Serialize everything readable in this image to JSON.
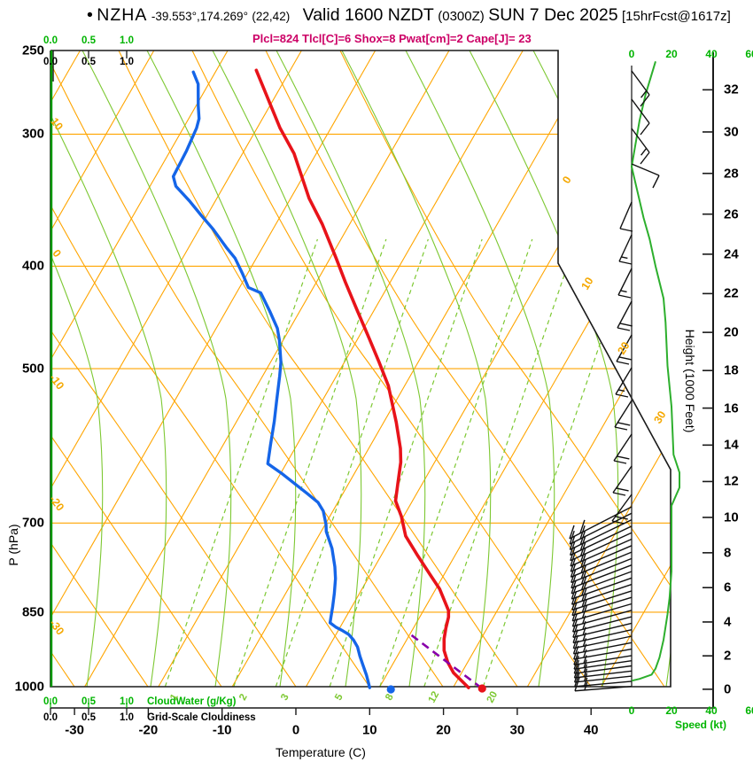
{
  "header": {
    "bullet": "•",
    "station": "NZHA",
    "coords": "-39.553°,174.269°",
    "grid_ref": "(22,42)",
    "valid": "Valid 1600 NZDT",
    "valid_z": "(0300Z)",
    "valid_date": "SUN 7 Dec 2025",
    "fcst_tag": "[15hrFcst@1617z]",
    "params_line": "Plcl=824 Tlcl[C]=6 Shox=8 Pwat[cm]=2 Cape[J]= 23"
  },
  "axes": {
    "pressure": {
      "label": "P (hPa)",
      "ticks": [
        250,
        300,
        400,
        500,
        700,
        850,
        1000
      ]
    },
    "temperature": {
      "label": "Temperature (C)",
      "ticks": [
        -30,
        -20,
        -10,
        0,
        10,
        20,
        30,
        40
      ]
    },
    "height": {
      "label": "Height (1000 Feet)",
      "ticks": [
        0,
        2,
        4,
        6,
        8,
        10,
        12,
        14,
        16,
        18,
        20,
        22,
        24,
        26,
        28,
        30,
        32
      ]
    },
    "speed": {
      "label": "Speed (kt)",
      "ticks": [
        0,
        20,
        40,
        60
      ]
    },
    "cloudwater": {
      "label": "CloudWater (g/Kg)",
      "scale": [
        "0.0",
        "0.5",
        "1.0"
      ]
    },
    "cloudiness": {
      "label": "Grid-Scale Cloudiness",
      "scale": [
        "0.0",
        "0.5",
        "1.0"
      ]
    },
    "adiabat_labels_left": [
      "10",
      "0",
      "-10",
      "-20",
      "-30"
    ],
    "isotherm_labels_right": [
      "0",
      "10",
      "20",
      "30"
    ],
    "mixing_ratio_labels": [
      "1",
      "2",
      "3",
      "5",
      "8",
      "12",
      "20"
    ]
  },
  "chart_data": {
    "type": "line",
    "variant": "skew-t log-p sounding",
    "title": "NZHA forecast sounding, valid 1600 NZDT (0300Z) SUN 7 Dec 2025, 15hr forecast issued 1617z",
    "indices": {
      "Plcl_hPa": 824,
      "Tlcl_C": 6,
      "Showalter": 8,
      "Pwat_cm": 2,
      "Cape_J": 23
    },
    "pressure_axis_hPa": [
      250,
      1000
    ],
    "temperature_axis_C": [
      -35,
      45
    ],
    "grid": {
      "isobars_hPa": [
        300,
        400,
        500,
        700,
        850,
        1000
      ],
      "isotherms_C": [
        -80,
        -70,
        -60,
        -50,
        -40,
        -30,
        -20,
        -10,
        0,
        10,
        20,
        30,
        40
      ],
      "mixing_ratio_gkg": [
        1,
        2,
        3,
        5,
        8,
        12,
        20
      ],
      "mixing_ratio_Td1000_C": [
        -19.1,
        -9.8,
        -4.1,
        3.2,
        10.0,
        16.0,
        24.0
      ]
    },
    "temperature_profile_P_T": [
      [
        1002,
        22.1
      ],
      [
        970,
        18.9
      ],
      [
        948,
        17.3
      ],
      [
        924,
        15.9
      ],
      [
        901,
        15.0
      ],
      [
        880,
        14.4
      ],
      [
        859,
        13.9
      ],
      [
        847,
        13.4
      ],
      [
        808,
        10.5
      ],
      [
        782,
        8.0
      ],
      [
        752,
        5.0
      ],
      [
        720,
        1.8
      ],
      [
        690,
        -0.3
      ],
      [
        667,
        -2.3
      ],
      [
        643,
        -3.3
      ],
      [
        613,
        -4.6
      ],
      [
        595,
        -5.7
      ],
      [
        562,
        -8.3
      ],
      [
        519,
        -12.2
      ],
      [
        493,
        -15.3
      ],
      [
        468,
        -18.5
      ],
      [
        441,
        -22.2
      ],
      [
        414,
        -26.1
      ],
      [
        393,
        -29.2
      ],
      [
        365,
        -33.7
      ],
      [
        345,
        -37.5
      ],
      [
        313,
        -43.0
      ],
      [
        296,
        -46.9
      ],
      [
        261,
        -54.6
      ]
    ],
    "dewpoint_profile_P_Td": [
      [
        1002,
        8.7
      ],
      [
        975,
        7.3
      ],
      [
        955,
        6.1
      ],
      [
        935,
        4.9
      ],
      [
        917,
        3.9
      ],
      [
        903,
        2.8
      ],
      [
        892,
        1.7
      ],
      [
        885,
        0.6
      ],
      [
        878,
        -0.6
      ],
      [
        870,
        -1.7
      ],
      [
        860,
        -2.0
      ],
      [
        840,
        -2.6
      ],
      [
        816,
        -3.4
      ],
      [
        790,
        -4.4
      ],
      [
        770,
        -5.4
      ],
      [
        740,
        -7.2
      ],
      [
        713,
        -9.3
      ],
      [
        702,
        -9.9
      ],
      [
        682,
        -11.3
      ],
      [
        669,
        -12.7
      ],
      [
        656,
        -14.9
      ],
      [
        643,
        -17.2
      ],
      [
        628,
        -19.9
      ],
      [
        615,
        -22.5
      ],
      [
        590,
        -23.6
      ],
      [
        561,
        -24.9
      ],
      [
        536,
        -26.2
      ],
      [
        508,
        -27.7
      ],
      [
        493,
        -28.6
      ],
      [
        470,
        -30.5
      ],
      [
        458,
        -31.7
      ],
      [
        441,
        -34.1
      ],
      [
        424,
        -36.7
      ],
      [
        419,
        -38.8
      ],
      [
        407,
        -40.6
      ],
      [
        393,
        -42.9
      ],
      [
        384,
        -44.9
      ],
      [
        369,
        -48.1
      ],
      [
        358,
        -50.8
      ],
      [
        347,
        -53.5
      ],
      [
        336,
        -56.5
      ],
      [
        329,
        -57.6
      ],
      [
        311,
        -57.8
      ],
      [
        296,
        -58.2
      ],
      [
        290,
        -58.6
      ],
      [
        282,
        -59.7
      ],
      [
        269,
        -61.4
      ],
      [
        262,
        -63.0
      ]
    ],
    "wind_profile_P_kt": [
      [
        256,
        12
      ],
      [
        275,
        7
      ],
      [
        291,
        4
      ],
      [
        322,
        0
      ],
      [
        360,
        6
      ],
      [
        377,
        9
      ],
      [
        400,
        12
      ],
      [
        429,
        16
      ],
      [
        452,
        17
      ],
      [
        497,
        18
      ],
      [
        543,
        20
      ],
      [
        603,
        21
      ],
      [
        627,
        24
      ],
      [
        648,
        24
      ],
      [
        674,
        20
      ],
      [
        713,
        20
      ],
      [
        778,
        20
      ],
      [
        824,
        19
      ],
      [
        854,
        18
      ],
      [
        903,
        16
      ],
      [
        938,
        14
      ],
      [
        961,
        12
      ],
      [
        974,
        10
      ],
      [
        983,
        4
      ],
      [
        987,
        0
      ]
    ],
    "surface": {
      "pressure_hPa": 1000,
      "temp_dot_C": 24,
      "dewpoint_dot_C": 11.7
    },
    "parcel_path_P_T": [
      [
        1003,
        23.9
      ],
      [
        890,
        9.8
      ]
    ]
  }
}
